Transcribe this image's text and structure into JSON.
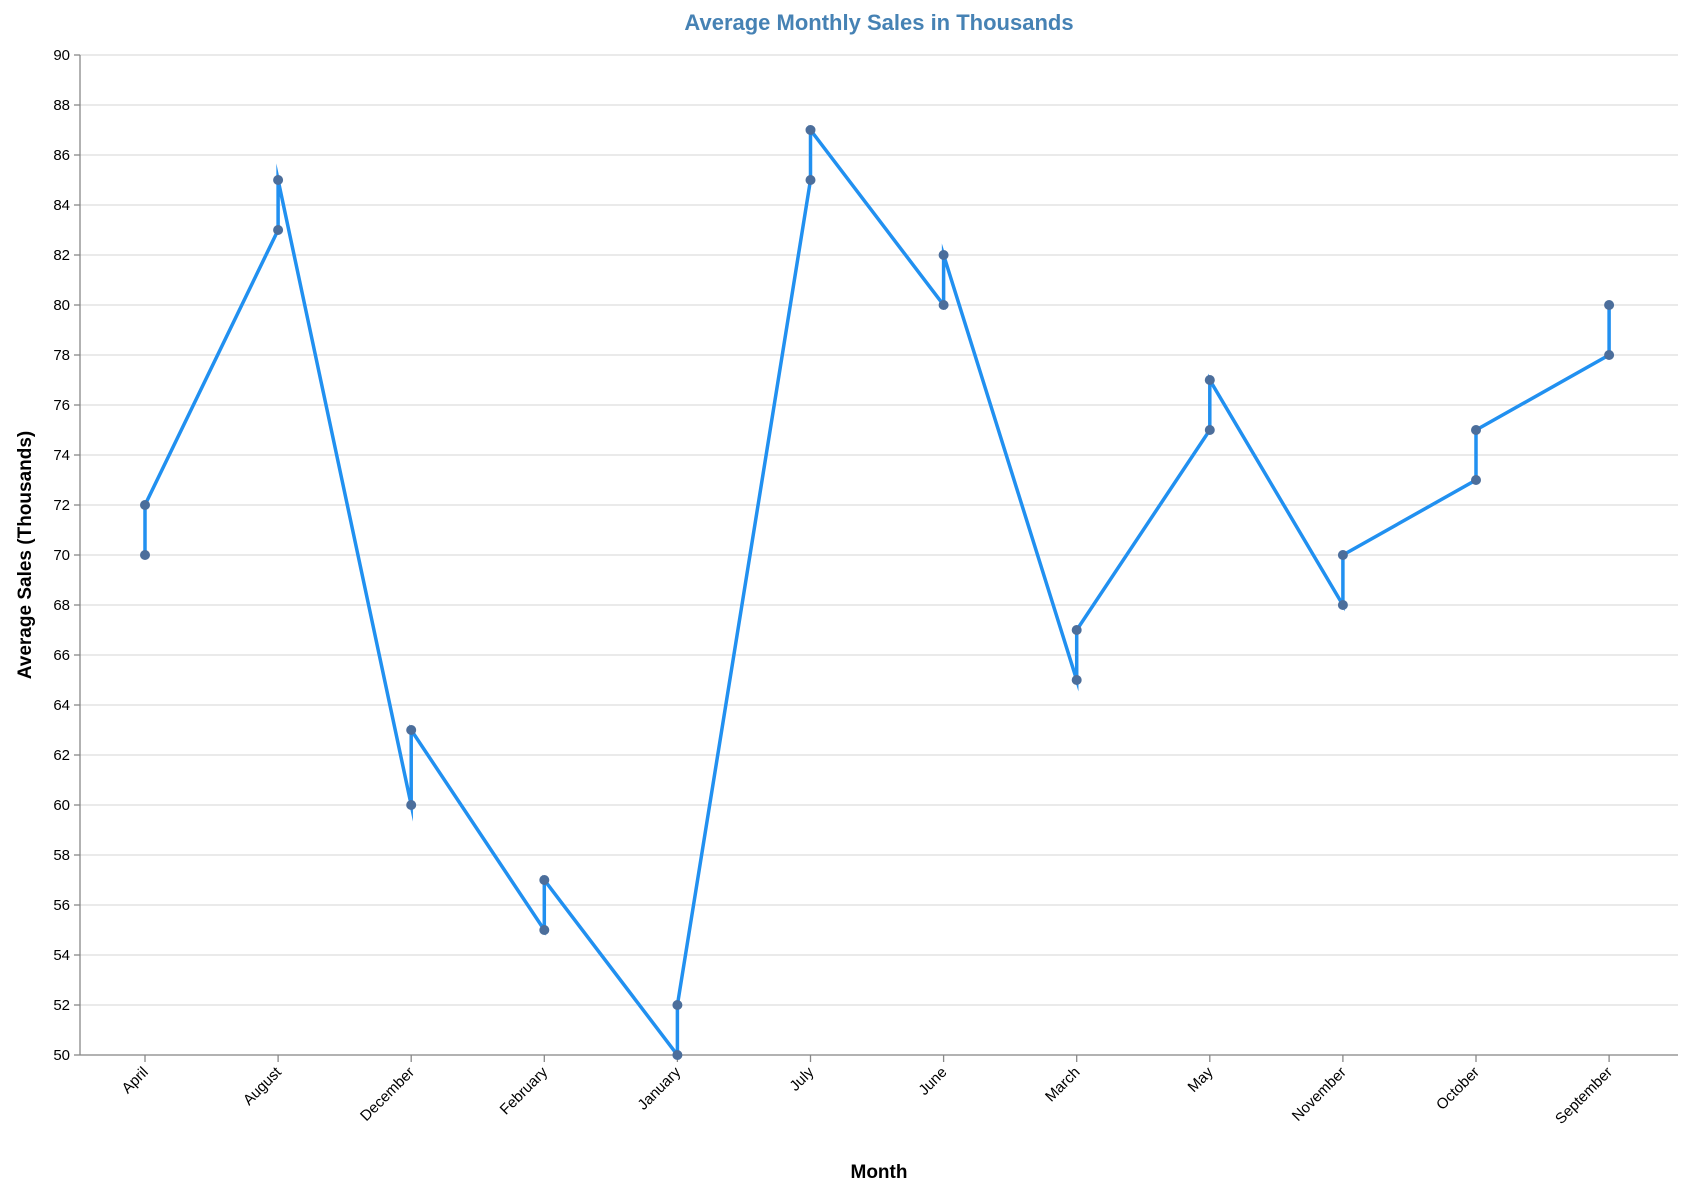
{
  "chart_data": {
    "type": "line",
    "title": "Average Monthly Sales in Thousands",
    "xlabel": "Month",
    "ylabel": "Average Sales (Thousands)",
    "categories": [
      "April",
      "August",
      "December",
      "February",
      "January",
      "July",
      "June",
      "March",
      "May",
      "November",
      "October",
      "September"
    ],
    "points": [
      {
        "x": "April",
        "y": 70
      },
      {
        "x": "April",
        "y": 72
      },
      {
        "x": "August",
        "y": 83
      },
      {
        "x": "August",
        "y": 85
      },
      {
        "x": "December",
        "y": 60
      },
      {
        "x": "December",
        "y": 63
      },
      {
        "x": "February",
        "y": 55
      },
      {
        "x": "February",
        "y": 57
      },
      {
        "x": "January",
        "y": 50
      },
      {
        "x": "January",
        "y": 52
      },
      {
        "x": "July",
        "y": 85
      },
      {
        "x": "July",
        "y": 87
      },
      {
        "x": "June",
        "y": 80
      },
      {
        "x": "June",
        "y": 82
      },
      {
        "x": "March",
        "y": 65
      },
      {
        "x": "March",
        "y": 67
      },
      {
        "x": "May",
        "y": 75
      },
      {
        "x": "May",
        "y": 77
      },
      {
        "x": "November",
        "y": 68
      },
      {
        "x": "November",
        "y": 70
      },
      {
        "x": "October",
        "y": 73
      },
      {
        "x": "October",
        "y": 75
      },
      {
        "x": "September",
        "y": 78
      },
      {
        "x": "September",
        "y": 80
      }
    ],
    "ylim": [
      50,
      90
    ],
    "yticks": [
      50,
      52,
      54,
      56,
      58,
      60,
      62,
      64,
      66,
      68,
      70,
      72,
      74,
      76,
      78,
      80,
      82,
      84,
      86,
      88,
      90
    ],
    "grid": true,
    "legend": "none",
    "colors": {
      "line": "#2190f0",
      "point": "#4c6e9b",
      "title": "#4682b4",
      "grid": "#dddddd",
      "axis": "#888888"
    }
  }
}
